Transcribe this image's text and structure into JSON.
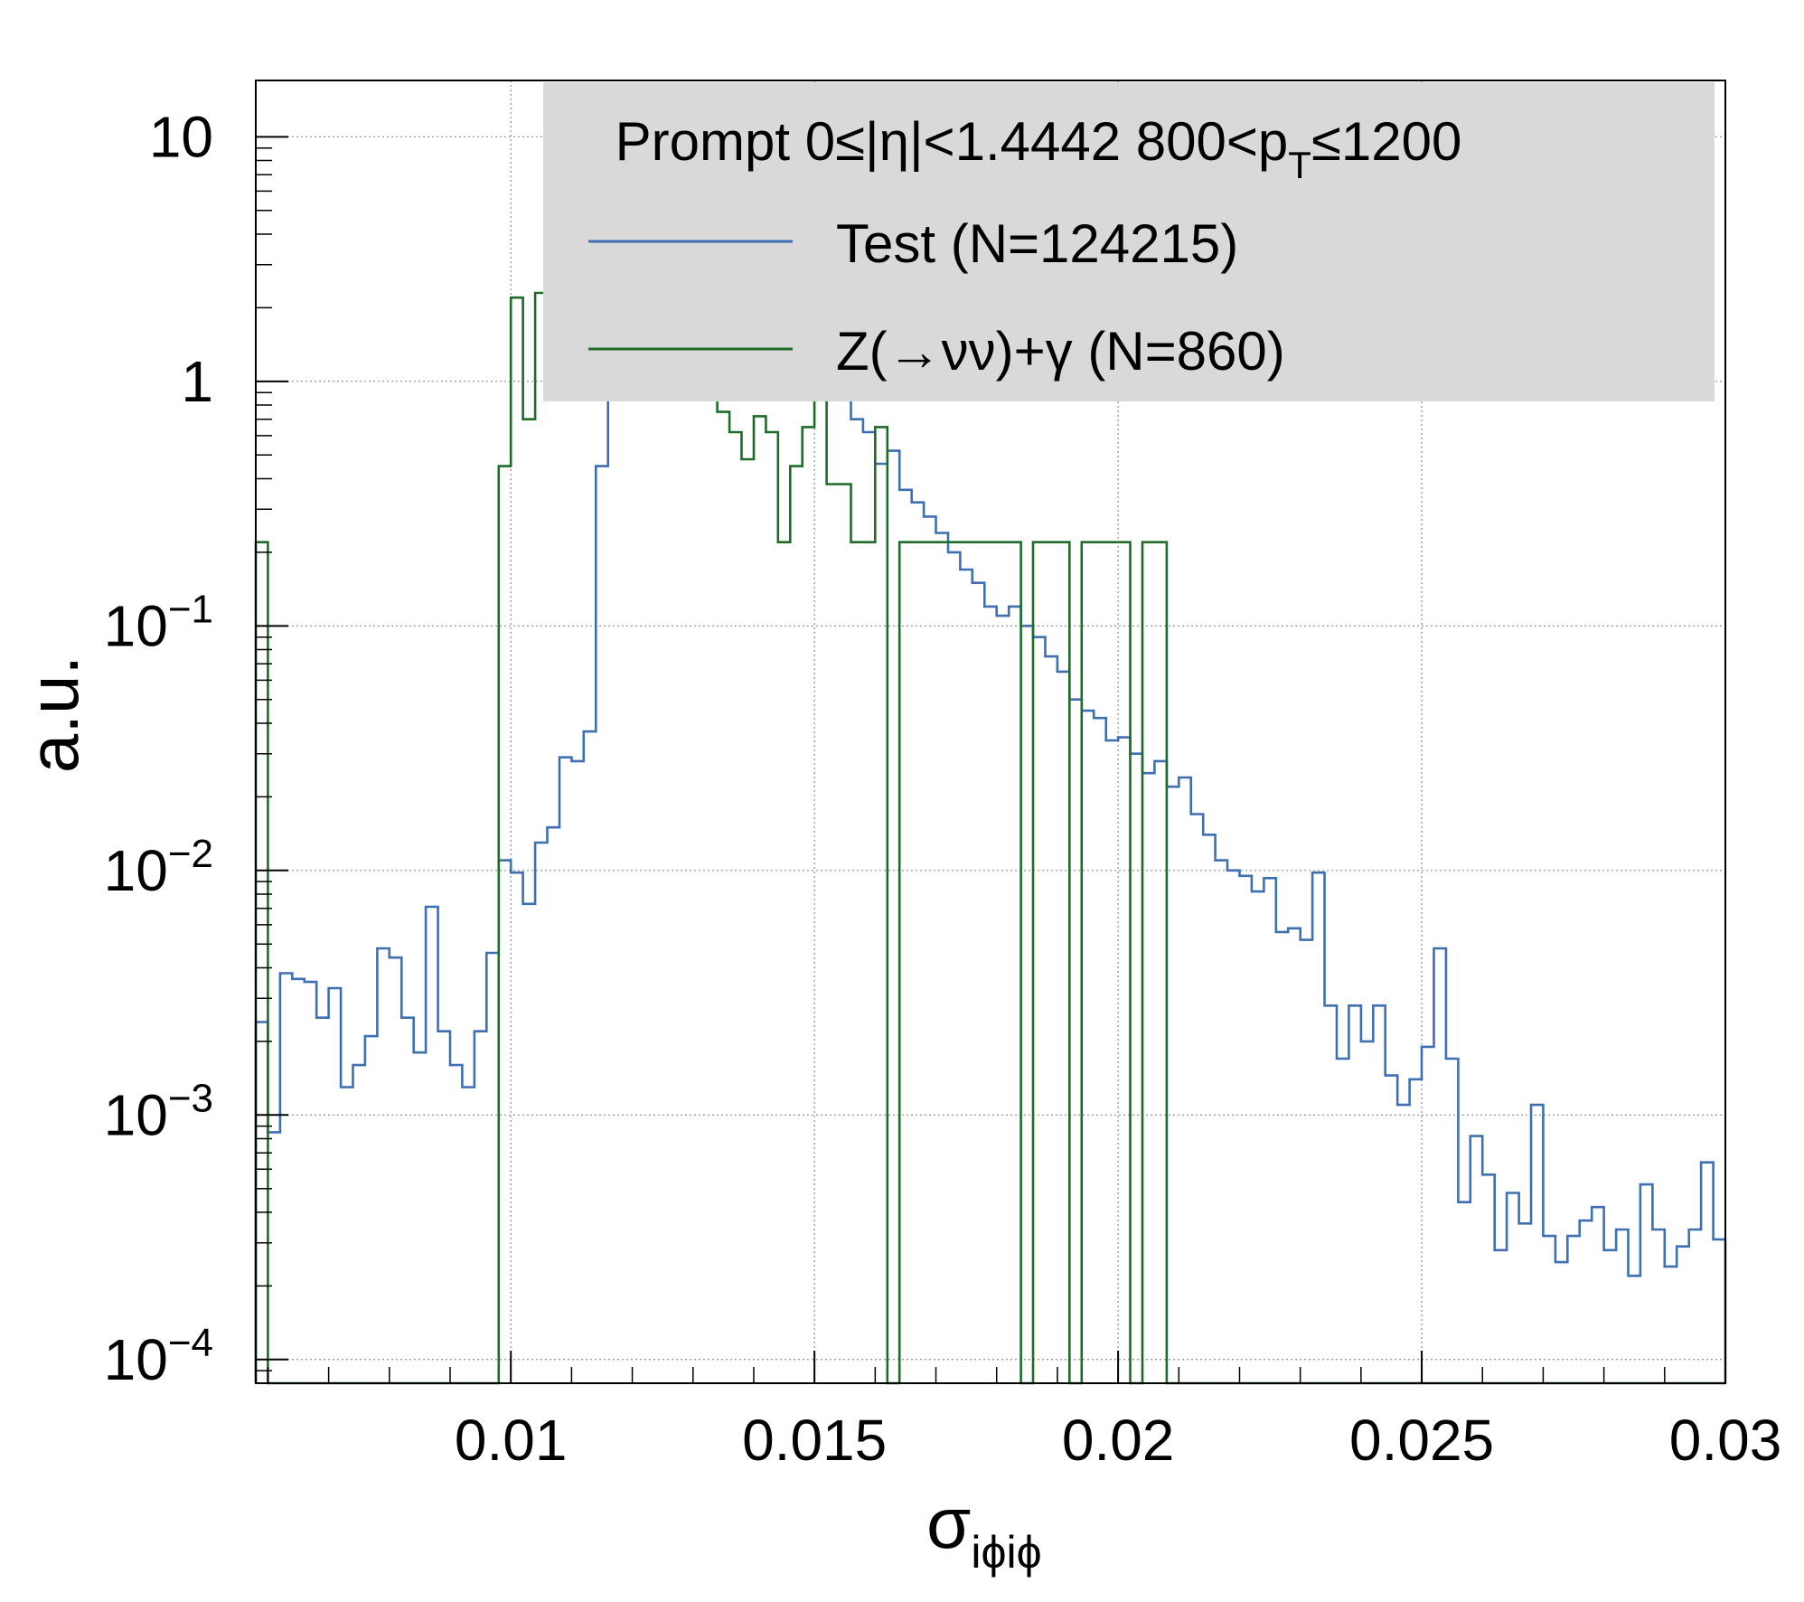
{
  "chart_data": {
    "type": "histogram",
    "x_scale": "linear",
    "y_scale": "log",
    "xlim": [
      0.0058,
      0.03
    ],
    "ylim": [
      8e-05,
      17
    ],
    "grid": true,
    "legend_position": "top-right",
    "xlabel": {
      "main": "σ",
      "sub": "iϕiϕ"
    },
    "ylabel": "a.u.",
    "x_ticks": [
      {
        "value": 0.01,
        "label": "0.01"
      },
      {
        "value": 0.015,
        "label": "0.015"
      },
      {
        "value": 0.02,
        "label": "0.02"
      },
      {
        "value": 0.025,
        "label": "0.025"
      },
      {
        "value": 0.03,
        "label": "0.03"
      }
    ],
    "y_ticks": [
      {
        "value": 10,
        "base": "10",
        "exp": ""
      },
      {
        "value": 1,
        "base": "1",
        "exp": ""
      },
      {
        "value": 0.1,
        "base": "10",
        "exp": "−1"
      },
      {
        "value": 0.01,
        "base": "10",
        "exp": "−2"
      },
      {
        "value": 0.001,
        "base": "10",
        "exp": "−3"
      },
      {
        "value": 0.0001,
        "base": "10",
        "exp": "−4"
      }
    ],
    "legend_header": {
      "prefix": "Prompt  0≤|η|<1.4442  800<p",
      "sub": "T",
      "suffix": "≤1200"
    },
    "bin_width": 0.0002,
    "series": [
      {
        "name": "Test (N=124215)",
        "color": "#3e6fb0",
        "bins": [
          [
            0.0058,
            0.0024
          ],
          [
            0.006,
            0.00085
          ],
          [
            0.0062,
            0.0038
          ],
          [
            0.0064,
            0.0036
          ],
          [
            0.0066,
            0.0035
          ],
          [
            0.0068,
            0.0025
          ],
          [
            0.007,
            0.0033
          ],
          [
            0.0072,
            0.0013
          ],
          [
            0.0074,
            0.0016
          ],
          [
            0.0076,
            0.0021
          ],
          [
            0.0078,
            0.0048
          ],
          [
            0.008,
            0.0044
          ],
          [
            0.0082,
            0.0025
          ],
          [
            0.0084,
            0.0018
          ],
          [
            0.0086,
            0.0071
          ],
          [
            0.0088,
            0.0022
          ],
          [
            0.009,
            0.0016
          ],
          [
            0.0092,
            0.0013
          ],
          [
            0.0094,
            0.0022
          ],
          [
            0.0096,
            0.0046
          ],
          [
            0.0098,
            0.011
          ],
          [
            0.01,
            0.0098
          ],
          [
            0.0102,
            0.0073
          ],
          [
            0.0104,
            0.013
          ],
          [
            0.0106,
            0.015
          ],
          [
            0.0108,
            0.029
          ],
          [
            0.011,
            0.028
          ],
          [
            0.0112,
            0.037
          ],
          [
            0.0114,
            0.45
          ],
          [
            0.0116,
            0.95
          ],
          [
            0.0118,
            1.8
          ],
          [
            0.012,
            1.5
          ],
          [
            0.0122,
            2.4
          ],
          [
            0.0124,
            2.5
          ],
          [
            0.0126,
            3.0
          ],
          [
            0.0128,
            4.0
          ],
          [
            0.013,
            5.2
          ],
          [
            0.0132,
            6.5
          ],
          [
            0.0134,
            8.0
          ],
          [
            0.0136,
            8.8
          ],
          [
            0.0138,
            8.5
          ],
          [
            0.014,
            7.2
          ],
          [
            0.0142,
            5.5
          ],
          [
            0.0144,
            4.1
          ],
          [
            0.0146,
            2.8
          ],
          [
            0.0148,
            1.9
          ],
          [
            0.015,
            1.5
          ],
          [
            0.0152,
            1.1
          ],
          [
            0.0154,
            0.9
          ],
          [
            0.0156,
            0.7
          ],
          [
            0.0158,
            0.62
          ],
          [
            0.016,
            0.46
          ],
          [
            0.0162,
            0.52
          ],
          [
            0.0164,
            0.36
          ],
          [
            0.0166,
            0.32
          ],
          [
            0.0168,
            0.28
          ],
          [
            0.017,
            0.24
          ],
          [
            0.0172,
            0.2
          ],
          [
            0.0174,
            0.17
          ],
          [
            0.0176,
            0.15
          ],
          [
            0.0178,
            0.12
          ],
          [
            0.018,
            0.11
          ],
          [
            0.0182,
            0.12
          ],
          [
            0.0184,
            0.1
          ],
          [
            0.0186,
            0.09
          ],
          [
            0.0188,
            0.075
          ],
          [
            0.019,
            0.065
          ],
          [
            0.0192,
            0.05
          ],
          [
            0.0194,
            0.045
          ],
          [
            0.0196,
            0.042
          ],
          [
            0.0198,
            0.034
          ],
          [
            0.02,
            0.035
          ],
          [
            0.0202,
            0.03
          ],
          [
            0.0204,
            0.025
          ],
          [
            0.0206,
            0.028
          ],
          [
            0.0208,
            0.022
          ],
          [
            0.021,
            0.024
          ],
          [
            0.0212,
            0.017
          ],
          [
            0.0214,
            0.014
          ],
          [
            0.0216,
            0.011
          ],
          [
            0.0218,
            0.01
          ],
          [
            0.022,
            0.0095
          ],
          [
            0.0222,
            0.0082
          ],
          [
            0.0224,
            0.0093
          ],
          [
            0.0226,
            0.0056
          ],
          [
            0.0228,
            0.0058
          ],
          [
            0.023,
            0.0052
          ],
          [
            0.0232,
            0.0098
          ],
          [
            0.0234,
            0.0028
          ],
          [
            0.0236,
            0.0017
          ],
          [
            0.0238,
            0.0028
          ],
          [
            0.024,
            0.002
          ],
          [
            0.0242,
            0.0028
          ],
          [
            0.0244,
            0.00145
          ],
          [
            0.0246,
            0.0011
          ],
          [
            0.0248,
            0.0014
          ],
          [
            0.025,
            0.0019
          ],
          [
            0.0252,
            0.0048
          ],
          [
            0.0254,
            0.0017
          ],
          [
            0.0256,
            0.00044
          ],
          [
            0.0258,
            0.00082
          ],
          [
            0.026,
            0.00057
          ],
          [
            0.0262,
            0.00028
          ],
          [
            0.0264,
            0.00048
          ],
          [
            0.0266,
            0.00036
          ],
          [
            0.0268,
            0.0011
          ],
          [
            0.027,
            0.00032
          ],
          [
            0.0272,
            0.00025
          ],
          [
            0.0274,
            0.00032
          ],
          [
            0.0276,
            0.00037
          ],
          [
            0.0278,
            0.00042
          ],
          [
            0.028,
            0.00028
          ],
          [
            0.0282,
            0.00034
          ],
          [
            0.0284,
            0.00022
          ],
          [
            0.0286,
            0.00052
          ],
          [
            0.0288,
            0.00034
          ],
          [
            0.029,
            0.00024
          ],
          [
            0.0292,
            0.00029
          ],
          [
            0.0294,
            0.00034
          ],
          [
            0.0296,
            0.00064
          ],
          [
            0.0298,
            0.00031
          ]
        ]
      },
      {
        "name": "Z(→νν)+γ (N=860)",
        "color": "#1e6b2a",
        "bins": [
          [
            0.0058,
            0.22
          ],
          [
            0.0098,
            0.45
          ],
          [
            0.01,
            2.2
          ],
          [
            0.0102,
            0.7
          ],
          [
            0.0104,
            2.3
          ],
          [
            0.0106,
            2.5
          ],
          [
            0.0108,
            2.5
          ],
          [
            0.011,
            3.5
          ],
          [
            0.0112,
            6.5
          ],
          [
            0.0114,
            5.0
          ],
          [
            0.0116,
            8.0
          ],
          [
            0.0118,
            10.0
          ],
          [
            0.012,
            12.5
          ],
          [
            0.0122,
            7.2
          ],
          [
            0.0124,
            9.5
          ],
          [
            0.0126,
            7.5
          ],
          [
            0.0128,
            6.5
          ],
          [
            0.013,
            2.2
          ],
          [
            0.0132,
            1.2
          ],
          [
            0.0134,
            0.75
          ],
          [
            0.0136,
            0.62
          ],
          [
            0.0138,
            0.48
          ],
          [
            0.014,
            0.72
          ],
          [
            0.0142,
            0.62
          ],
          [
            0.0144,
            0.22
          ],
          [
            0.0146,
            0.45
          ],
          [
            0.0148,
            0.65
          ],
          [
            0.015,
            1.1
          ],
          [
            0.0152,
            0.38
          ],
          [
            0.0154,
            0.38
          ],
          [
            0.0156,
            0.22
          ],
          [
            0.0158,
            0.22
          ],
          [
            0.016,
            0.65
          ],
          [
            0.0164,
            0.22
          ],
          [
            0.0166,
            0.22
          ],
          [
            0.0168,
            0.22
          ],
          [
            0.017,
            0.22
          ],
          [
            0.0172,
            0.22
          ],
          [
            0.0174,
            0.22
          ],
          [
            0.0176,
            0.22
          ],
          [
            0.0178,
            0.22
          ],
          [
            0.018,
            0.22
          ],
          [
            0.0182,
            0.22
          ],
          [
            0.0186,
            0.22
          ],
          [
            0.0188,
            0.22
          ],
          [
            0.019,
            0.22
          ],
          [
            0.0194,
            0.22
          ],
          [
            0.0196,
            0.22
          ],
          [
            0.0198,
            0.22
          ],
          [
            0.02,
            0.22
          ],
          [
            0.0204,
            0.22
          ],
          [
            0.0206,
            0.22
          ]
        ]
      }
    ]
  }
}
